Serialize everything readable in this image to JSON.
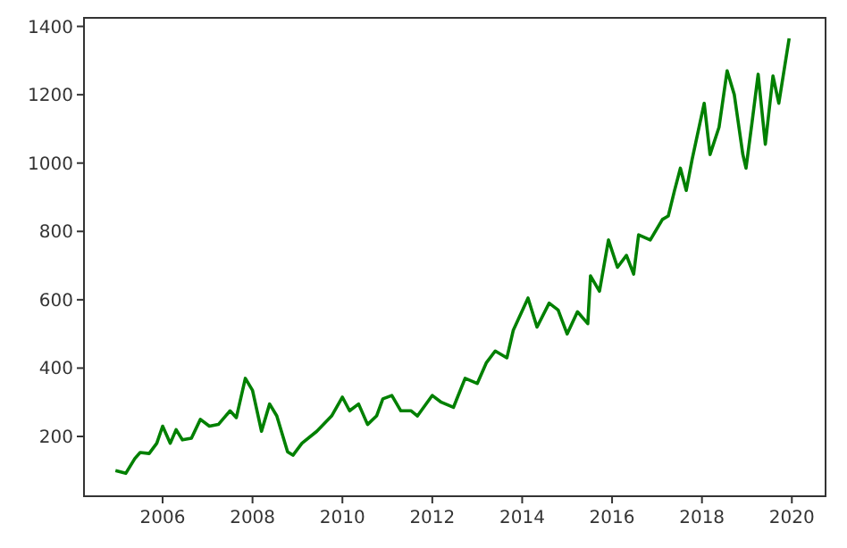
{
  "chart_data": {
    "type": "line",
    "xlim": [
      2004.25,
      2020.75
    ],
    "ylim": [
      25,
      1425
    ],
    "xticks": [
      2006,
      2008,
      2010,
      2012,
      2014,
      2016,
      2018,
      2020
    ],
    "yticks": [
      200,
      400,
      600,
      800,
      1000,
      1200,
      1400
    ],
    "grid": false,
    "marker": "none",
    "line_style": "solid",
    "series": [
      {
        "color": "#008000",
        "x": [
          2004.95,
          2005.18,
          2005.38,
          2005.5,
          2005.7,
          2005.87,
          2006.0,
          2006.17,
          2006.3,
          2006.44,
          2006.64,
          2006.84,
          2007.04,
          2007.24,
          2007.5,
          2007.64,
          2007.84,
          2008.0,
          2008.2,
          2008.38,
          2008.54,
          2008.78,
          2008.9,
          2009.1,
          2009.43,
          2009.76,
          2010.0,
          2010.16,
          2010.36,
          2010.56,
          2010.76,
          2010.9,
          2011.1,
          2011.3,
          2011.53,
          2011.67,
          2012.0,
          2012.2,
          2012.47,
          2012.73,
          2013.0,
          2013.2,
          2013.4,
          2013.66,
          2013.8,
          2014.13,
          2014.33,
          2014.6,
          2014.8,
          2015.0,
          2015.23,
          2015.46,
          2015.52,
          2015.72,
          2015.92,
          2016.12,
          2016.32,
          2016.48,
          2016.59,
          2016.85,
          2017.12,
          2017.25,
          2017.39,
          2017.52,
          2017.65,
          2017.78,
          2018.05,
          2018.18,
          2018.38,
          2018.56,
          2018.72,
          2018.91,
          2018.98,
          2019.11,
          2019.25,
          2019.41,
          2019.58,
          2019.71,
          2019.94
        ],
        "values": [
          100,
          92,
          135,
          153,
          150,
          180,
          230,
          180,
          220,
          190,
          195,
          250,
          230,
          235,
          275,
          255,
          370,
          335,
          215,
          295,
          260,
          155,
          145,
          180,
          215,
          260,
          315,
          275,
          295,
          235,
          260,
          310,
          320,
          275,
          275,
          260,
          320,
          300,
          285,
          370,
          355,
          415,
          450,
          430,
          510,
          605,
          520,
          590,
          570,
          500,
          565,
          530,
          670,
          625,
          775,
          695,
          730,
          675,
          790,
          775,
          835,
          845,
          920,
          985,
          920,
          1010,
          1175,
          1025,
          1105,
          1270,
          1200,
          1025,
          985,
          1115,
          1260,
          1055,
          1255,
          1175,
          1365
        ]
      }
    ]
  }
}
